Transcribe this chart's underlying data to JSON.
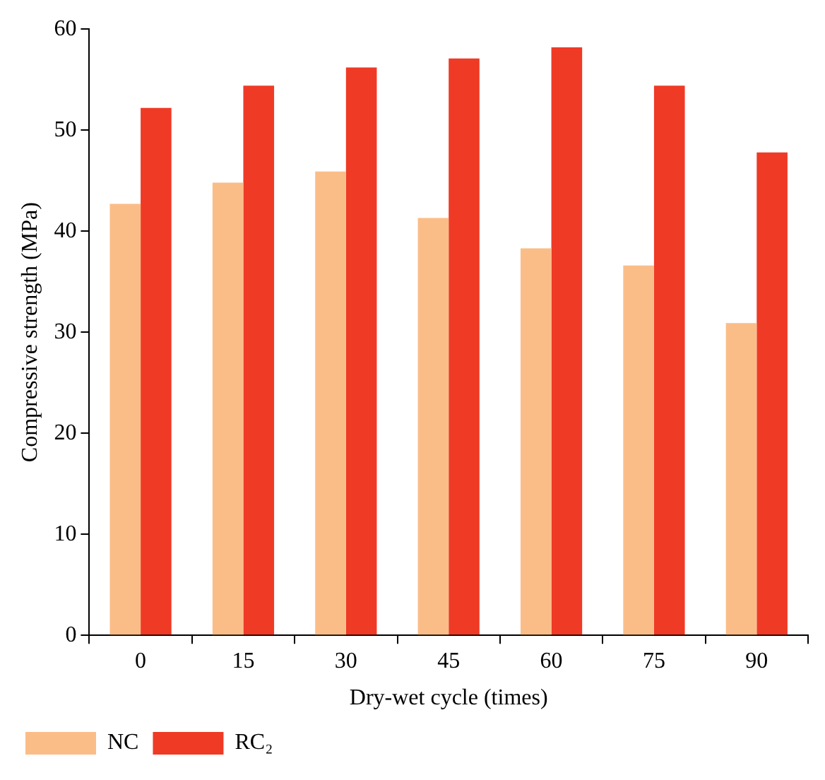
{
  "chart_data": {
    "type": "bar",
    "xlabel": "Dry-wet cycle (times)",
    "ylabel": "Compressive strength (MPa)",
    "categories": [
      "0",
      "15",
      "30",
      "45",
      "60",
      "75",
      "90"
    ],
    "series": [
      {
        "name": "NC",
        "color": "#fbbd88",
        "values": [
          42.7,
          44.8,
          45.9,
          41.3,
          38.3,
          36.6,
          30.9
        ]
      },
      {
        "name": "RC₂",
        "color": "#ef3a26",
        "values": [
          52.2,
          54.4,
          56.2,
          57.1,
          58.2,
          54.4,
          47.8
        ]
      }
    ],
    "ylim": [
      0,
      60
    ],
    "yticks": [
      0,
      10,
      20,
      30,
      40,
      50,
      60
    ],
    "grid": false,
    "legend": "bottom"
  }
}
